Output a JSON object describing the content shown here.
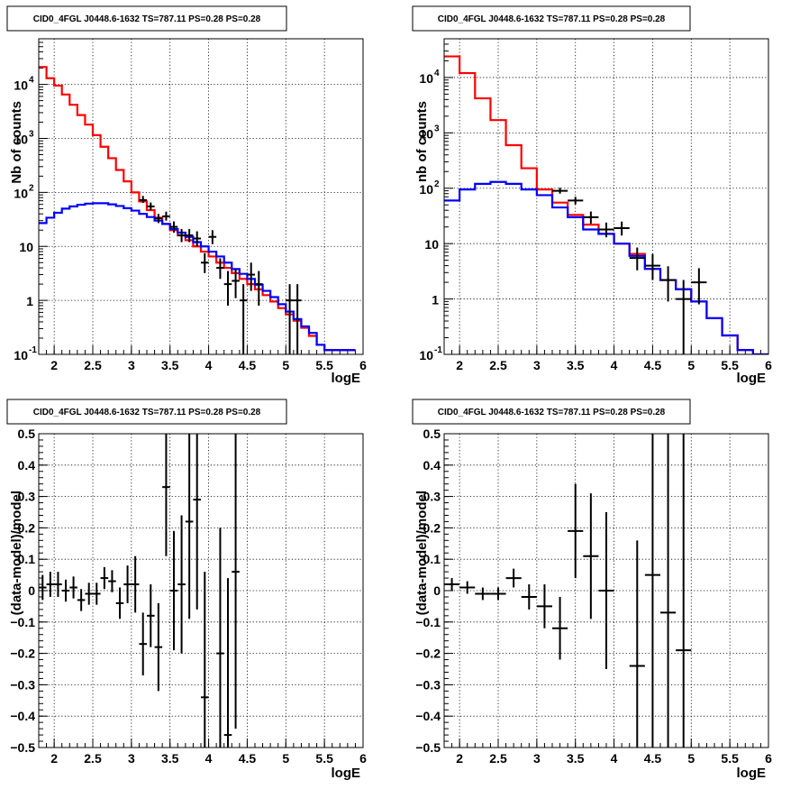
{
  "chart_data": [
    {
      "type": "histogram",
      "title": "CID0_4FGL J0448.6-1632 TS=787.11 PS=0.28 PS=0.28",
      "xlabel": "logE",
      "ylabel": "Nb of counts",
      "xlim": [
        1.8,
        6.0
      ],
      "ylim": [
        0.1,
        70000
      ],
      "yscale": "log",
      "grid": true,
      "x_ticks": [
        "2",
        "2.5",
        "3",
        "3.5",
        "4",
        "4.5",
        "5",
        "5.5",
        "6"
      ],
      "y_ticks": [
        {
          "base": "10",
          "exp": "-1"
        },
        {
          "base": "1",
          "exp": ""
        },
        {
          "base": "10",
          "exp": ""
        },
        {
          "base": "10",
          "exp": "2"
        },
        {
          "base": "10",
          "exp": "3"
        },
        {
          "base": "10",
          "exp": "4"
        }
      ],
      "bin_edges": [
        1.8,
        1.9,
        2.0,
        2.1,
        2.2,
        2.3,
        2.4,
        2.5,
        2.6,
        2.7,
        2.8,
        2.9,
        3.0,
        3.1,
        3.2,
        3.3,
        3.4,
        3.5,
        3.6,
        3.7,
        3.8,
        3.9,
        4.0,
        4.1,
        4.2,
        4.3,
        4.4,
        4.5,
        4.6,
        4.7,
        4.8,
        4.9,
        5.0,
        5.1,
        5.2,
        5.3,
        5.4,
        5.5,
        5.6,
        5.7,
        5.8,
        5.9,
        6.0
      ],
      "series": [
        {
          "color": "#ff0000",
          "style": "step",
          "values": [
            21000,
            13000,
            9500,
            6500,
            4200,
            2700,
            1800,
            1150,
            700,
            430,
            260,
            160,
            100,
            68,
            47,
            34,
            26,
            20,
            16,
            13,
            10,
            8,
            6.5,
            5,
            4,
            3.2,
            2.5,
            2,
            1.6,
            1.25,
            0.95,
            0.72,
            0.55,
            0.42,
            0.31,
            0.22,
            0.15,
            0.12,
            0.12,
            0.12,
            0.12,
            null
          ]
        },
        {
          "color": "#0000ff",
          "style": "step",
          "values": [
            27,
            34,
            42,
            50,
            55,
            59,
            62,
            63,
            63,
            60,
            56,
            51,
            46,
            40,
            35,
            30,
            26,
            21,
            18,
            15,
            12,
            10,
            8,
            6.5,
            5,
            3.8,
            3.1,
            2.5,
            1.95,
            1.5,
            1.15,
            0.85,
            0.62,
            0.45,
            0.33,
            0.25,
            0.15,
            0.12,
            0.12,
            0.12,
            0.12,
            null
          ]
        },
        {
          "color": "#000000",
          "style": "errorbar",
          "points": [
            [
              3.15,
              72,
              14,
              8
            ],
            [
              3.25,
              55,
              10,
              8
            ],
            [
              3.35,
              33,
              7,
              6
            ],
            [
              3.45,
              36,
              8,
              6
            ],
            [
              3.55,
              23,
              6,
              5
            ],
            [
              3.65,
              16,
              5,
              4
            ],
            [
              3.75,
              16,
              5,
              4
            ],
            [
              3.85,
              14,
              5,
              4
            ],
            [
              3.95,
              5,
              2.5,
              1.8
            ],
            [
              4.05,
              15,
              5,
              4
            ],
            [
              4.15,
              4,
              2,
              1.5
            ],
            [
              4.25,
              2,
              1.5,
              1.2
            ],
            [
              4.35,
              2.3,
              1.5,
              1.2
            ],
            [
              4.45,
              1,
              1,
              0.9
            ],
            [
              4.55,
              3,
              2,
              1.5
            ],
            [
              4.65,
              2,
              1.5,
              1.2
            ],
            [
              5.05,
              1,
              1,
              0.9
            ],
            [
              5.15,
              1,
              1,
              0.9
            ]
          ]
        }
      ]
    },
    {
      "type": "histogram",
      "title": "CID0_4FGL J0448.6-1632 TS=787.11 PS=0.28 PS=0.28",
      "xlabel": "logE",
      "ylabel": "nb of counts",
      "xlim": [
        1.8,
        6.0
      ],
      "ylim": [
        0.1,
        50000
      ],
      "yscale": "log",
      "grid": true,
      "x_ticks": [
        "2",
        "2.5",
        "3",
        "3.5",
        "4",
        "4.5",
        "5",
        "5.5",
        "6"
      ],
      "y_ticks": [
        {
          "base": "10",
          "exp": "-1"
        },
        {
          "base": "1",
          "exp": ""
        },
        {
          "base": "10",
          "exp": ""
        },
        {
          "base": "10",
          "exp": "2"
        },
        {
          "base": "10",
          "exp": "3"
        },
        {
          "base": "10",
          "exp": "4"
        }
      ],
      "bin_edges": [
        1.8,
        2.0,
        2.2,
        2.4,
        2.6,
        2.8,
        3.0,
        3.2,
        3.4,
        3.6,
        3.8,
        4.0,
        4.2,
        4.4,
        4.6,
        4.8,
        5.0,
        5.2,
        5.4,
        5.6,
        5.8,
        6.0
      ],
      "series": [
        {
          "color": "#ff0000",
          "style": "step",
          "values": [
            24000,
            12000,
            4200,
            1700,
            600,
            230,
            95,
            55,
            33,
            22,
            15,
            10,
            6.5,
            3.5,
            2.2,
            1.5,
            0.9,
            0.45,
            0.22,
            0.12,
            0.1
          ]
        },
        {
          "color": "#0000ff",
          "style": "step",
          "values": [
            60,
            95,
            120,
            130,
            120,
            95,
            75,
            45,
            30,
            18,
            15,
            10,
            6,
            3.5,
            2.2,
            1.5,
            0.9,
            0.45,
            0.22,
            0.12,
            0.1
          ]
        },
        {
          "color": "#000000",
          "style": "errorbar",
          "points": [
            [
              3.3,
              90,
              12,
              10
            ],
            [
              3.5,
              60,
              10,
              9
            ],
            [
              3.7,
              30,
              8,
              7
            ],
            [
              3.9,
              18,
              6,
              5
            ],
            [
              4.1,
              19,
              6,
              5
            ],
            [
              4.3,
              5.5,
              3,
              2.2
            ],
            [
              4.5,
              4,
              2.5,
              1.8
            ],
            [
              4.7,
              2.2,
              1.7,
              1.3
            ],
            [
              4.9,
              1,
              1.2,
              0.9
            ],
            [
              5.1,
              2,
              1.6,
              1.2
            ]
          ]
        }
      ]
    },
    {
      "type": "scatter",
      "title": "CID0_4FGL J0448.6-1632 TS=787.11 PS=0.28 PS=0.28",
      "xlabel": "logE",
      "ylabel": "(data-model)/model",
      "xlim": [
        1.8,
        6.0
      ],
      "ylim": [
        -0.5,
        0.5
      ],
      "grid": true,
      "x_ticks": [
        "2",
        "2.5",
        "3",
        "3.5",
        "4",
        "4.5",
        "5",
        "5.5",
        "6"
      ],
      "y_ticks": [
        "−0.5",
        "−0.4",
        "−0.3",
        "−0.2",
        "−0.1",
        "0",
        "0.1",
        "0.2",
        "0.3",
        "0.4",
        "0.5"
      ],
      "series": [
        {
          "color": "#000000",
          "style": "errorbar",
          "points": [
            [
              1.85,
              0.01,
              0.04
            ],
            [
              1.95,
              0.02,
              0.04
            ],
            [
              2.05,
              0.02,
              0.04
            ],
            [
              2.15,
              0.0,
              0.035
            ],
            [
              2.25,
              0.01,
              0.035
            ],
            [
              2.35,
              -0.03,
              0.035
            ],
            [
              2.45,
              -0.01,
              0.035
            ],
            [
              2.55,
              -0.01,
              0.035
            ],
            [
              2.65,
              0.04,
              0.035
            ],
            [
              2.75,
              0.03,
              0.035
            ],
            [
              2.85,
              -0.04,
              0.05
            ],
            [
              2.95,
              0.02,
              0.06
            ],
            [
              3.05,
              0.02,
              0.09
            ],
            [
              3.15,
              -0.17,
              0.1
            ],
            [
              3.25,
              -0.08,
              0.1
            ],
            [
              3.35,
              -0.18,
              0.14
            ],
            [
              3.45,
              0.33,
              0.22
            ],
            [
              3.55,
              0.0,
              0.19
            ],
            [
              3.65,
              0.02,
              0.22
            ],
            [
              3.75,
              0.22,
              0.31
            ],
            [
              3.85,
              0.29,
              0.35
            ],
            [
              3.95,
              -0.34,
              0.4
            ],
            [
              4.15,
              -0.2,
              0.4
            ],
            [
              4.25,
              -0.46,
              0.5
            ],
            [
              4.35,
              0.06,
              0.5
            ]
          ]
        }
      ]
    },
    {
      "type": "scatter",
      "title": "CID0_4FGL J0448.6-1632 TS=787.11 PS=0.28 PS=0.28",
      "xlabel": "logE",
      "ylabel": "(data-model)/model",
      "xlim": [
        1.8,
        6.0
      ],
      "ylim": [
        -0.5,
        0.5
      ],
      "grid": true,
      "x_ticks": [
        "2",
        "2.5",
        "3",
        "3.5",
        "4",
        "4.5",
        "5",
        "5.5",
        "6"
      ],
      "y_ticks": [
        "−0.5",
        "−0.4",
        "−0.3",
        "−0.2",
        "−0.1",
        "0",
        "0.1",
        "0.2",
        "0.3",
        "0.4",
        "0.5"
      ],
      "series": [
        {
          "color": "#000000",
          "style": "errorbar",
          "points": [
            [
              1.9,
              0.02,
              0.02
            ],
            [
              2.1,
              0.01,
              0.02
            ],
            [
              2.3,
              -0.01,
              0.02
            ],
            [
              2.5,
              -0.01,
              0.02
            ],
            [
              2.7,
              0.04,
              0.03
            ],
            [
              2.9,
              -0.02,
              0.04
            ],
            [
              3.1,
              -0.05,
              0.07
            ],
            [
              3.3,
              -0.12,
              0.1
            ],
            [
              3.5,
              0.19,
              0.15
            ],
            [
              3.7,
              0.11,
              0.2
            ],
            [
              3.9,
              0.0,
              0.25
            ],
            [
              4.3,
              -0.24,
              0.4
            ],
            [
              4.5,
              0.05,
              0.6
            ],
            [
              4.7,
              -0.07,
              0.6
            ],
            [
              4.9,
              -0.19,
              0.7
            ]
          ]
        }
      ]
    }
  ]
}
